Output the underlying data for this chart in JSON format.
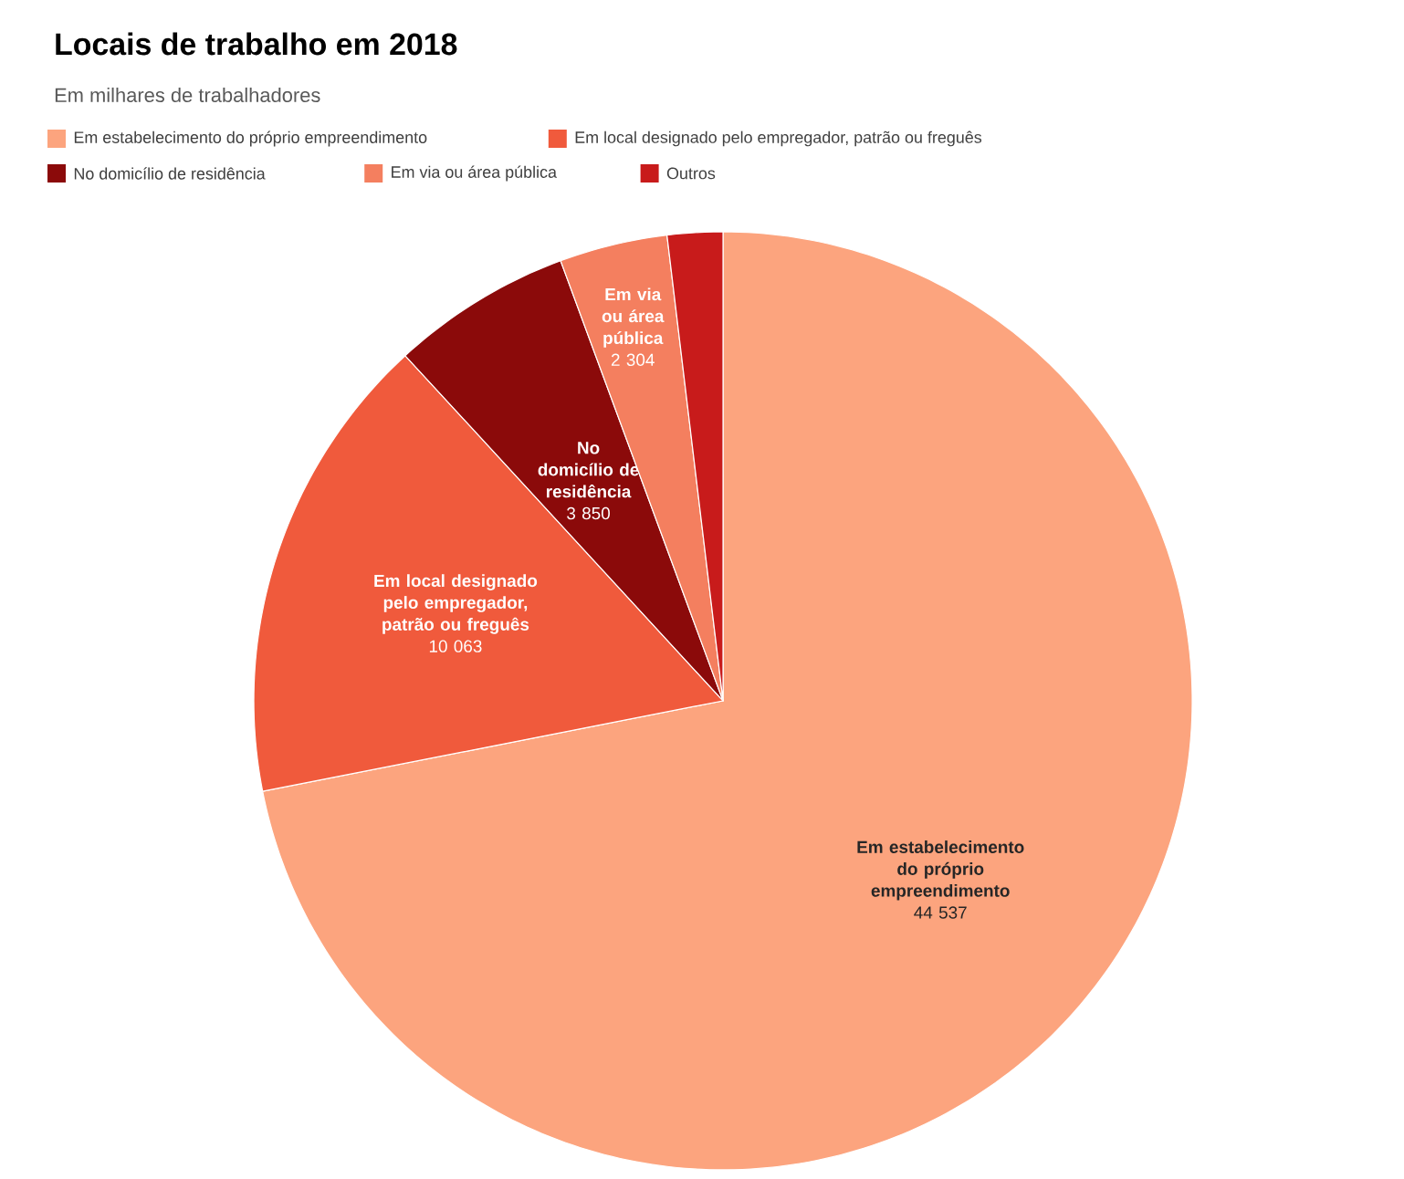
{
  "chart_data": {
    "type": "pie",
    "title": "Locais de trabalho em 2018",
    "subtitle": "Em milhares de trabalhadores",
    "categories": [
      "Em estabelecimento do próprio empreendimento",
      "Em local designado pelo empregador, patrão ou freguês",
      "No domicílio de residência",
      "Em via ou área pública",
      "Outros"
    ],
    "values": [
      44537,
      10063,
      3850,
      2304,
      1180
    ],
    "value_labels": [
      "44 537",
      "10 063",
      "3 850",
      "2 304",
      null
    ],
    "colors": [
      "#fca47e",
      "#f05a3c",
      "#8b0a0a",
      "#f47f5f",
      "#c81b1b"
    ],
    "legend": "top left"
  }
}
